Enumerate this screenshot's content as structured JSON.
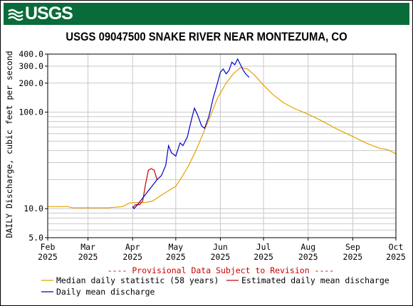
{
  "header": {
    "logo_text": "USGS",
    "banner_color": "#0a6b3a"
  },
  "chart_data": {
    "type": "line",
    "title": "USGS 09047500 SNAKE RIVER NEAR MONTEZUMA, CO",
    "ylabel": "DAILY Discharge, cubic feet per second",
    "y_scale": "log",
    "ylim": [
      5,
      400
    ],
    "y_ticks": [
      "400.0",
      "300.0",
      "200.0",
      "100.0",
      "10.0",
      "5.0"
    ],
    "xlim": [
      "2025-02-01",
      "2025-10-01"
    ],
    "x_ticks": [
      {
        "month": "Feb",
        "year": "2025"
      },
      {
        "month": "Mar",
        "year": "2025"
      },
      {
        "month": "Apr",
        "year": "2025"
      },
      {
        "month": "May",
        "year": "2025"
      },
      {
        "month": "Jun",
        "year": "2025"
      },
      {
        "month": "Jul",
        "year": "2025"
      },
      {
        "month": "Aug",
        "year": "2025"
      },
      {
        "month": "Sep",
        "year": "2025"
      },
      {
        "month": "Oct",
        "year": "2025"
      }
    ],
    "grid": true,
    "note": "---- Provisional Data Subject to Revision ----",
    "series": [
      {
        "name": "Median daily statistic (58 years)",
        "color": "#e8a000",
        "points": [
          [
            "2025-02-01",
            10.5
          ],
          [
            "2025-02-15",
            10.5
          ],
          [
            "2025-02-18",
            10.2
          ],
          [
            "2025-03-01",
            10.2
          ],
          [
            "2025-03-15",
            10.2
          ],
          [
            "2025-03-25",
            10.5
          ],
          [
            "2025-03-30",
            11.5
          ],
          [
            "2025-04-10",
            11.6
          ],
          [
            "2025-04-15",
            12.0
          ],
          [
            "2025-04-20",
            13.5
          ],
          [
            "2025-04-25",
            15
          ],
          [
            "2025-05-01",
            17
          ],
          [
            "2025-05-05",
            21
          ],
          [
            "2025-05-10",
            28
          ],
          [
            "2025-05-15",
            40
          ],
          [
            "2025-05-20",
            60
          ],
          [
            "2025-05-25",
            90
          ],
          [
            "2025-05-30",
            140
          ],
          [
            "2025-06-05",
            200
          ],
          [
            "2025-06-10",
            250
          ],
          [
            "2025-06-15",
            290
          ],
          [
            "2025-06-20",
            280
          ],
          [
            "2025-06-25",
            240
          ],
          [
            "2025-07-01",
            190
          ],
          [
            "2025-07-08",
            150
          ],
          [
            "2025-07-15",
            125
          ],
          [
            "2025-07-22",
            110
          ],
          [
            "2025-08-01",
            95
          ],
          [
            "2025-08-10",
            82
          ],
          [
            "2025-08-20",
            68
          ],
          [
            "2025-09-01",
            56
          ],
          [
            "2025-09-10",
            48
          ],
          [
            "2025-09-20",
            42
          ],
          [
            "2025-09-25",
            41
          ],
          [
            "2025-10-01",
            37
          ]
        ]
      },
      {
        "name": "Estimated daily mean discharge",
        "color": "#cc0000",
        "points": [
          [
            "2025-04-01",
            10.2
          ],
          [
            "2025-04-03",
            11
          ],
          [
            "2025-04-06",
            11
          ],
          [
            "2025-04-08",
            12
          ],
          [
            "2025-04-10",
            18
          ],
          [
            "2025-04-12",
            25
          ],
          [
            "2025-04-14",
            26
          ],
          [
            "2025-04-16",
            25
          ],
          [
            "2025-04-18",
            20
          ]
        ]
      },
      {
        "name": "Daily mean discharge",
        "color": "#0000cc",
        "points": [
          [
            "2025-04-01",
            10.5
          ],
          [
            "2025-04-02",
            10.0
          ],
          [
            "2025-04-04",
            10.8
          ],
          [
            "2025-04-18",
            20
          ],
          [
            "2025-04-21",
            22
          ],
          [
            "2025-04-24",
            28
          ],
          [
            "2025-04-26",
            45
          ],
          [
            "2025-04-28",
            38
          ],
          [
            "2025-05-01",
            35
          ],
          [
            "2025-05-04",
            48
          ],
          [
            "2025-05-06",
            45
          ],
          [
            "2025-05-09",
            55
          ],
          [
            "2025-05-12",
            85
          ],
          [
            "2025-05-14",
            110
          ],
          [
            "2025-05-16",
            95
          ],
          [
            "2025-05-19",
            72
          ],
          [
            "2025-05-21",
            68
          ],
          [
            "2025-05-24",
            90
          ],
          [
            "2025-05-27",
            140
          ],
          [
            "2025-05-30",
            200
          ],
          [
            "2025-06-01",
            260
          ],
          [
            "2025-06-03",
            280
          ],
          [
            "2025-06-05",
            250
          ],
          [
            "2025-06-07",
            270
          ],
          [
            "2025-06-09",
            330
          ],
          [
            "2025-06-11",
            310
          ],
          [
            "2025-06-13",
            355
          ],
          [
            "2025-06-15",
            310
          ],
          [
            "2025-06-17",
            270
          ],
          [
            "2025-06-19",
            245
          ],
          [
            "2025-06-21",
            230
          ]
        ]
      }
    ]
  }
}
